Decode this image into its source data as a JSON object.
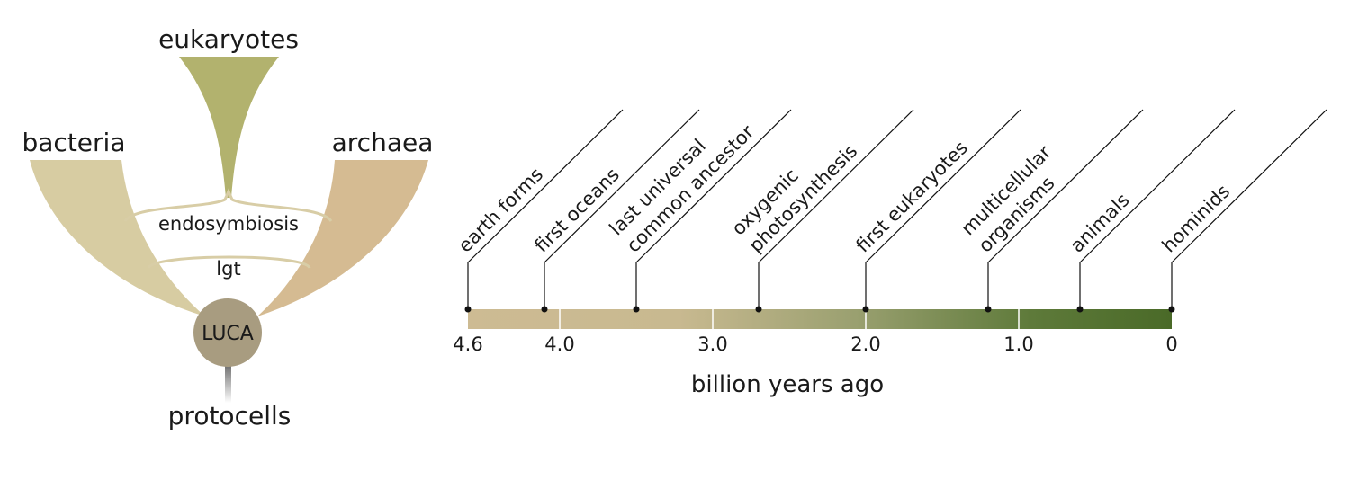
{
  "tree": {
    "eukaryotes": "eukaryotes",
    "bacteria": "bacteria",
    "archaea": "archaea",
    "endosymbiosis": "endosymbiosis",
    "lgt": "lgt",
    "luca": "LUCA",
    "protocells": "protocells",
    "colors": {
      "eukaryotes": "#b2b26e",
      "bacteria": "#d7cca2",
      "archaea": "#d5bb92",
      "luca": "#a89c80",
      "connector": "#d8cda6",
      "stem": "#6b6b6b"
    }
  },
  "timeline": {
    "axis_label": "billion years ago",
    "ticks": [
      "4.6",
      "4.0",
      "3.0",
      "2.0",
      "1.0",
      "0"
    ],
    "tick_values": [
      4.6,
      4.0,
      3.0,
      2.0,
      1.0,
      0
    ],
    "gradient": [
      "#cdbb93",
      "#c8b990",
      "#9aa070",
      "#5e7a3a",
      "#4a6a28"
    ],
    "events": [
      {
        "lines": [
          "earth forms"
        ],
        "value": 4.6
      },
      {
        "lines": [
          "first oceans"
        ],
        "value": 4.1
      },
      {
        "lines": [
          "last universal",
          "common ancestor"
        ],
        "value": 3.5
      },
      {
        "lines": [
          "oxygenic",
          "photosynthesis"
        ],
        "value": 2.7
      },
      {
        "lines": [
          "first eukaryotes"
        ],
        "value": 2.0
      },
      {
        "lines": [
          "multicellular",
          "organisms"
        ],
        "value": 1.2
      },
      {
        "lines": [
          "animals"
        ],
        "value": 0.6
      },
      {
        "lines": [
          "hominids"
        ],
        "value": 0.0
      }
    ]
  }
}
